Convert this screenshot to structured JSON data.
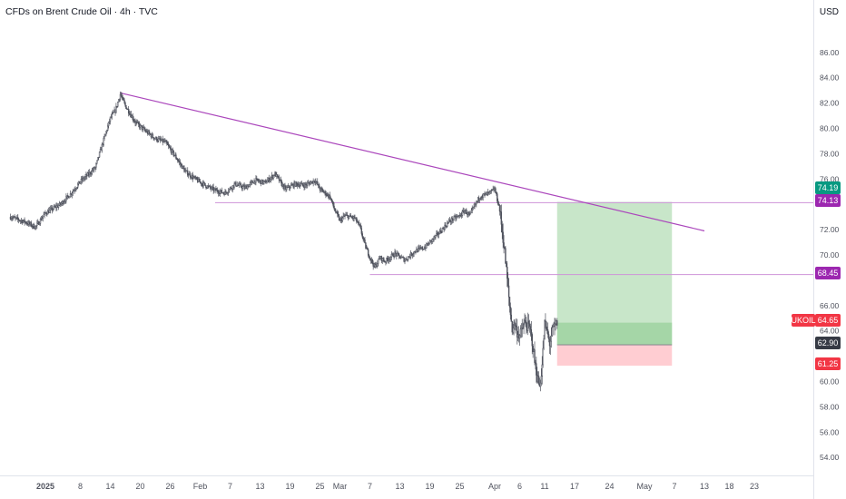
{
  "header": {
    "title": "CFDs on Brent Crude Oil · 4h · TVC",
    "currency": "USD"
  },
  "colors": {
    "trendline": "#ab47bc",
    "level": "#ce93d8",
    "profit_zone": "#c8e6c9",
    "profit_zone_dark": "#a5d6a7",
    "loss_zone": "#ffcdd2",
    "tag_green": "#089981",
    "tag_purple": "#9c27b0",
    "tag_red": "#f23645",
    "tag_gray": "#363a45",
    "candle": "#50535e"
  },
  "price_axis": {
    "ticks": [
      "86.00",
      "84.00",
      "82.00",
      "80.00",
      "78.00",
      "76.00",
      "72.00",
      "70.00",
      "66.00",
      "64.00",
      "60.00",
      "58.00",
      "56.00",
      "54.00"
    ],
    "range": [
      52.0,
      88.0
    ]
  },
  "price_tags": [
    {
      "label": "74.19",
      "value": 74.19,
      "color": "#089981"
    },
    {
      "label": "74.13",
      "value": 74.13,
      "color": "#9c27b0"
    },
    {
      "label": "68.45",
      "value": 68.45,
      "color": "#9c27b0"
    },
    {
      "label": "64.65",
      "value": 64.65,
      "color": "#f23645"
    },
    {
      "label": "62.90",
      "value": 62.9,
      "color": "#363a45"
    },
    {
      "label": "61.25",
      "value": 61.25,
      "color": "#f23645"
    }
  ],
  "symbol_tag": {
    "label": "UKOIL"
  },
  "time_axis": {
    "labels": [
      {
        "text": "2025",
        "day": 0,
        "bold": true
      },
      {
        "text": "8",
        "day": 7
      },
      {
        "text": "14",
        "day": 13
      },
      {
        "text": "20",
        "day": 19
      },
      {
        "text": "26",
        "day": 25
      },
      {
        "text": "Feb",
        "day": 31
      },
      {
        "text": "7",
        "day": 37
      },
      {
        "text": "13",
        "day": 43
      },
      {
        "text": "19",
        "day": 49
      },
      {
        "text": "25",
        "day": 55
      },
      {
        "text": "Mar",
        "day": 59
      },
      {
        "text": "7",
        "day": 65
      },
      {
        "text": "13",
        "day": 71
      },
      {
        "text": "19",
        "day": 77
      },
      {
        "text": "25",
        "day": 83
      },
      {
        "text": "Apr",
        "day": 90
      },
      {
        "text": "6",
        "day": 95
      },
      {
        "text": "11",
        "day": 100
      },
      {
        "text": "17",
        "day": 106
      },
      {
        "text": "24",
        "day": 113
      },
      {
        "text": "May",
        "day": 120
      },
      {
        "text": "7",
        "day": 126
      },
      {
        "text": "13",
        "day": 132
      },
      {
        "text": "18",
        "day": 137
      },
      {
        "text": "23",
        "day": 142
      }
    ],
    "range_days": [
      -7,
      142.5
    ]
  },
  "chart_data": {
    "type": "candlestick",
    "symbol": "UKOIL",
    "timeframe": "4h",
    "x_unit": "days since Jan 1 2025",
    "price_path": [
      [
        -7,
        73.0
      ],
      [
        -4,
        72.6
      ],
      [
        -2,
        72.2
      ],
      [
        0,
        73.3
      ],
      [
        3,
        74.0
      ],
      [
        5,
        74.8
      ],
      [
        7,
        75.8
      ],
      [
        9,
        76.5
      ],
      [
        10,
        76.9
      ],
      [
        12,
        79.5
      ],
      [
        13,
        80.8
      ],
      [
        14,
        81.4
      ],
      [
        15,
        82.7
      ],
      [
        16,
        81.8
      ],
      [
        18,
        80.5
      ],
      [
        20,
        79.8
      ],
      [
        22,
        79.2
      ],
      [
        24,
        78.9
      ],
      [
        26,
        77.8
      ],
      [
        28,
        76.6
      ],
      [
        30,
        76.0
      ],
      [
        32,
        75.5
      ],
      [
        34,
        75.1
      ],
      [
        36,
        74.9
      ],
      [
        38,
        75.6
      ],
      [
        40,
        75.3
      ],
      [
        42,
        75.9
      ],
      [
        44,
        75.7
      ],
      [
        46,
        76.4
      ],
      [
        48,
        75.2
      ],
      [
        50,
        75.6
      ],
      [
        52,
        75.5
      ],
      [
        54,
        75.9
      ],
      [
        55,
        75.2
      ],
      [
        57,
        74.6
      ],
      [
        58,
        73.5
      ],
      [
        59,
        72.7
      ],
      [
        60,
        73.1
      ],
      [
        62,
        72.9
      ],
      [
        63,
        72.2
      ],
      [
        64,
        70.8
      ],
      [
        65,
        69.8
      ],
      [
        66,
        69.0
      ],
      [
        67,
        69.8
      ],
      [
        68,
        69.5
      ],
      [
        70,
        70.1
      ],
      [
        72,
        69.6
      ],
      [
        74,
        70.3
      ],
      [
        76,
        70.6
      ],
      [
        77,
        71.0
      ],
      [
        79,
        71.8
      ],
      [
        81,
        72.7
      ],
      [
        83,
        73.1
      ],
      [
        84,
        73.5
      ],
      [
        85,
        73.1
      ],
      [
        86,
        73.9
      ],
      [
        87,
        74.6
      ],
      [
        89,
        74.9
      ],
      [
        90,
        75.2
      ],
      [
        91,
        73.6
      ],
      [
        92,
        70.2
      ],
      [
        93,
        65.9
      ],
      [
        93.5,
        64.2
      ],
      [
        94,
        64.6
      ],
      [
        94.5,
        63.9
      ],
      [
        95,
        63.6
      ],
      [
        96,
        64.6
      ],
      [
        97,
        64.2
      ],
      [
        97.5,
        63.2
      ],
      [
        98,
        61.6
      ],
      [
        98.5,
        60.4
      ],
      [
        99,
        59.6
      ],
      [
        99.5,
        61.3
      ],
      [
        100,
        64.6
      ],
      [
        100.5,
        63.9
      ],
      [
        101,
        63.0
      ],
      [
        101.5,
        63.9
      ],
      [
        102,
        64.3
      ],
      [
        102.5,
        64.65
      ]
    ],
    "trendline": {
      "from": [
        15,
        82.8
      ],
      "to": [
        132,
        71.9
      ]
    },
    "horizontal_levels": [
      {
        "from_day": 34,
        "price": 74.13
      },
      {
        "from_day": 65,
        "price": 68.45
      }
    ],
    "position": {
      "type": "long",
      "start_day": 102.5,
      "end_day": 125.5,
      "target": 74.19,
      "entry": 62.9,
      "stop": 61.25,
      "current": 64.65
    }
  }
}
